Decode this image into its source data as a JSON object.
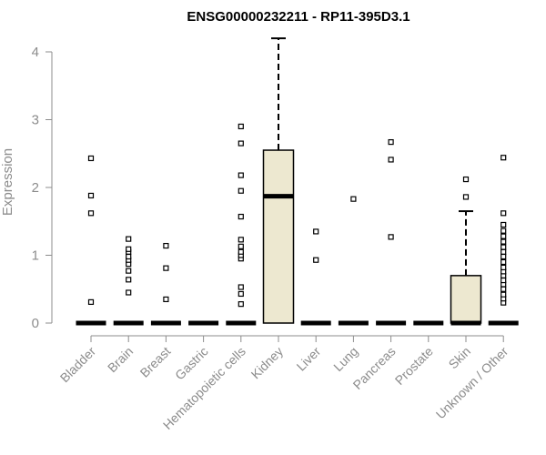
{
  "chart_data": {
    "type": "box",
    "title": "ENSG00000232211 - RP11-395D3.1",
    "xlabel": "",
    "ylabel": "Expression",
    "ylim": [
      0,
      4.2
    ],
    "yticks": [
      "0",
      "1",
      "2",
      "3",
      "4"
    ],
    "grid": false,
    "legend": "none",
    "colors": {
      "box_fill": "#ede8d0",
      "box_stroke": "#000000",
      "axis": "#8c8c8c",
      "tick_text": "#8c8c8c"
    },
    "categories": [
      "Bladder",
      "Brain",
      "Breast",
      "Gastric",
      "Hematopoietic cells",
      "Kidney",
      "Liver",
      "Lung",
      "Pancreas",
      "Prostate",
      "Skin",
      "Unknown / Other"
    ],
    "boxes": [
      {
        "category": "Bladder",
        "q1": 0,
        "median": 0,
        "q3": 0,
        "whisker_low": 0,
        "whisker_high": 0,
        "outliers": [
          0.31,
          1.62,
          1.88,
          2.43
        ]
      },
      {
        "category": "Brain",
        "q1": 0,
        "median": 0,
        "q3": 0,
        "whisker_low": 0,
        "whisker_high": 0,
        "outliers": [
          0.45,
          0.64,
          0.77,
          0.87,
          0.93,
          0.98,
          1.05,
          1.09,
          1.24
        ]
      },
      {
        "category": "Breast",
        "q1": 0,
        "median": 0,
        "q3": 0,
        "whisker_low": 0,
        "whisker_high": 0,
        "outliers": [
          0.35,
          0.81,
          1.14
        ]
      },
      {
        "category": "Gastric",
        "q1": 0,
        "median": 0,
        "q3": 0,
        "whisker_low": 0,
        "whisker_high": 0,
        "outliers": []
      },
      {
        "category": "Hematopoietic cells",
        "q1": 0,
        "median": 0,
        "q3": 0,
        "whisker_low": 0,
        "whisker_high": 0,
        "outliers": [
          0.28,
          0.43,
          0.53,
          0.95,
          1.0,
          1.05,
          1.13,
          1.23,
          1.57,
          1.95,
          2.18,
          2.65,
          2.9
        ]
      },
      {
        "category": "Kidney",
        "q1": 0,
        "median": 1.87,
        "q3": 2.55,
        "whisker_low": 0,
        "whisker_high": 4.2,
        "outliers": []
      },
      {
        "category": "Liver",
        "q1": 0,
        "median": 0,
        "q3": 0,
        "whisker_low": 0,
        "whisker_high": 0,
        "outliers": [
          0.93,
          1.35
        ]
      },
      {
        "category": "Lung",
        "q1": 0,
        "median": 0,
        "q3": 0,
        "whisker_low": 0,
        "whisker_high": 0,
        "outliers": [
          1.83
        ]
      },
      {
        "category": "Pancreas",
        "q1": 0,
        "median": 0,
        "q3": 0,
        "whisker_low": 0,
        "whisker_high": 0,
        "outliers": [
          1.27,
          2.41,
          2.67
        ]
      },
      {
        "category": "Prostate",
        "q1": 0,
        "median": 0,
        "q3": 0,
        "whisker_low": 0,
        "whisker_high": 0,
        "outliers": []
      },
      {
        "category": "Skin",
        "q1": 0,
        "median": 0,
        "q3": 0.7,
        "whisker_low": 0,
        "whisker_high": 1.65,
        "outliers": [
          1.86,
          2.12
        ]
      },
      {
        "category": "Unknown / Other",
        "q1": 0,
        "median": 0,
        "q3": 0,
        "whisker_low": 0,
        "whisker_high": 0,
        "outliers": [
          0.3,
          0.36,
          0.42,
          0.5,
          0.57,
          0.63,
          0.7,
          0.76,
          0.82,
          0.9,
          0.98,
          1.05,
          1.12,
          1.2,
          1.28,
          1.36,
          1.45,
          1.62,
          2.44
        ]
      }
    ]
  }
}
